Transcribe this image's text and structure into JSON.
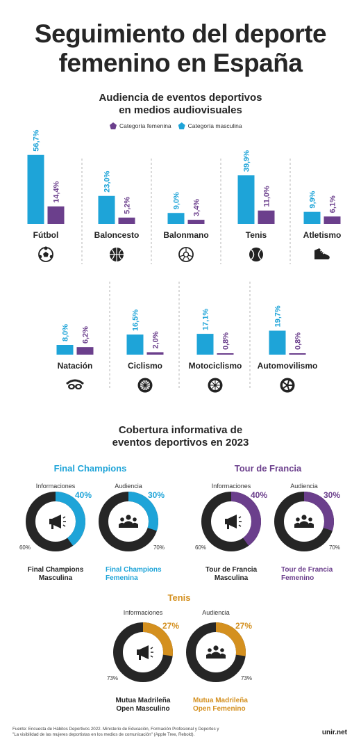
{
  "header": {
    "title_line1": "Seguimiento del deporte",
    "title_line2": "femenino en España"
  },
  "section1": {
    "subtitle_line1": "Audiencia de eventos deportivos",
    "subtitle_line2": "en medios audiovisuales",
    "legend_female": "Categoría femenina",
    "legend_male": "Categoría masculina"
  },
  "colors": {
    "male": "#1ea4d8",
    "female": "#6b3f8c",
    "orange": "#d4901f",
    "dark": "#262626"
  },
  "chart_data": [
    {
      "type": "bar",
      "categories": [
        "Fútbol",
        "Baloncesto",
        "Balonmano",
        "Tenis",
        "Atletismo",
        "Natación",
        "Ciclismo",
        "Motociclismo",
        "Automovilismo"
      ],
      "icons": [
        "soccer-ball-icon",
        "basketball-icon",
        "handball-icon",
        "tennis-ball-icon",
        "running-shoe-icon",
        "swim-goggles-icon",
        "bicycle-wheel-icon",
        "motorcycle-wheel-icon",
        "car-wheel-icon"
      ],
      "series": [
        {
          "name": "Categoría masculina",
          "values": [
            56.7,
            23.0,
            9.0,
            39.9,
            9.9,
            8.0,
            16.5,
            17.1,
            19.7
          ],
          "labels": [
            "56,7%",
            "23,0%",
            "9,0%",
            "39,9%",
            "9,9%",
            "8,0%",
            "16,5%",
            "17,1%",
            "19,7%"
          ]
        },
        {
          "name": "Categoría femenina",
          "values": [
            14.4,
            5.2,
            3.4,
            11.0,
            6.1,
            6.2,
            2.0,
            0.8,
            0.8
          ],
          "labels": [
            "14,4%",
            "5,2%",
            "3,4%",
            "11,0%",
            "6,1%",
            "6,2%",
            "2,0%",
            "0,8%",
            "0,8%"
          ]
        }
      ]
    },
    {
      "type": "pie",
      "subtitle_line1": "Cobertura informativa de",
      "subtitle_line2": "eventos deportivos en 2023",
      "groups": [
        {
          "name": "Final Champions",
          "donuts": [
            {
              "header": "Informaciones",
              "values": [
                40,
                60
              ],
              "labels": [
                "40%",
                "60%"
              ],
              "icon": "megaphone-icon"
            },
            {
              "header": "Audiencia",
              "values": [
                30,
                70
              ],
              "labels": [
                "30%",
                "70%"
              ],
              "icon": "people-icon"
            }
          ],
          "caption_dark_1": "Final Champions",
          "caption_dark_2": "Masculina",
          "caption_color_1": "Final Champions",
          "caption_color_2": "Femenina"
        },
        {
          "name": "Tour de Francia",
          "donuts": [
            {
              "header": "Informaciones",
              "values": [
                40,
                60
              ],
              "labels": [
                "40%",
                "60%"
              ],
              "icon": "megaphone-icon"
            },
            {
              "header": "Audiencia",
              "values": [
                30,
                70
              ],
              "labels": [
                "30%",
                "70%"
              ],
              "icon": "people-icon"
            }
          ],
          "caption_dark_1": "Tour de Francia",
          "caption_dark_2": "Masculina",
          "caption_color_1": "Tour de Francia",
          "caption_color_2": "Femenino"
        },
        {
          "name": "Tenis",
          "donuts": [
            {
              "header": "Informaciones",
              "values": [
                27,
                73
              ],
              "labels": [
                "27%",
                "73%"
              ],
              "icon": "megaphone-icon"
            },
            {
              "header": "Audiencia",
              "values": [
                27,
                73
              ],
              "labels": [
                "27%",
                "73%"
              ],
              "icon": "people-icon"
            }
          ],
          "caption_dark_1": "Mutua Madrileña",
          "caption_dark_2": "Open Masculino",
          "caption_color_1": "Mutua Madrileña",
          "caption_color_2": "Open Femenino"
        }
      ]
    }
  ],
  "footer": {
    "source_line1": "Fuente: Encuesta de Hábitos Deportivos 2022. Ministerio de Educación, Formación Profesional y Deportes y",
    "source_line2": "\"La visibilidad de las mujeres deportistas en los medios de comunicación\" (Apple Tree, Rebold).",
    "brand": "unir.net"
  }
}
